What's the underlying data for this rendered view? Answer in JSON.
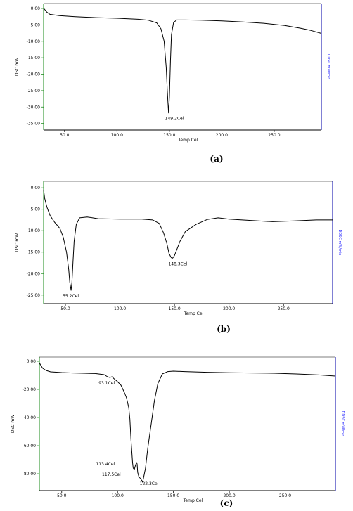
{
  "chart_data": [
    {
      "type": "line",
      "panel_label": "(a)",
      "ylabel": "DSC mW",
      "ylabel_right": "DDSC mW/min",
      "xlabel": "Temp Cel",
      "xlim": [
        30,
        295
      ],
      "ylim": [
        -37,
        1.5
      ],
      "xticks": [
        50,
        100,
        150,
        200,
        250
      ],
      "xtick_labels": [
        "50.0",
        "100.0",
        "150.0",
        "200.0",
        "250.0"
      ],
      "yticks": [
        0,
        -5,
        -10,
        -15,
        -20,
        -25,
        -30,
        -35
      ],
      "ytick_labels": [
        "0.00",
        "-5.00",
        "-10.00",
        "-15.00",
        "-20.00",
        "-25.00",
        "-30.00",
        "-35.00"
      ],
      "annotations": [
        {
          "text": "149.2Cel",
          "x": 149.2,
          "y": -31.8
        }
      ],
      "series": [
        {
          "x": [
            30,
            31,
            33,
            36,
            45,
            60,
            80,
            100,
            120,
            130,
            138,
            142,
            145,
            147,
            148,
            149.2,
            150,
            151,
            152,
            154,
            157,
            165,
            180,
            200,
            220,
            240,
            260,
            275,
            285,
            295
          ],
          "y": [
            0.0,
            -0.3,
            -1.1,
            -1.8,
            -2.2,
            -2.5,
            -2.8,
            -3.0,
            -3.3,
            -3.6,
            -4.4,
            -6.2,
            -10.0,
            -18.0,
            -25.0,
            -31.8,
            -27.0,
            -16.0,
            -8.0,
            -4.3,
            -3.5,
            -3.5,
            -3.6,
            -3.8,
            -4.1,
            -4.5,
            -5.2,
            -6.0,
            -6.7,
            -7.6
          ]
        }
      ]
    },
    {
      "type": "line",
      "panel_label": "(b)",
      "ylabel": "DSC mW",
      "ylabel_right": "DDSC mW/min",
      "xlabel": "Temp Cel",
      "xlim": [
        30,
        295
      ],
      "ylim": [
        -27,
        1.5
      ],
      "xticks": [
        50,
        100,
        150,
        200,
        250
      ],
      "xtick_labels": [
        "50.0",
        "100.0",
        "150.0",
        "200.0",
        "250.0"
      ],
      "yticks": [
        0,
        -5,
        -10,
        -15,
        -20,
        -25
      ],
      "ytick_labels": [
        "0.00",
        "-5.00",
        "-10.00",
        "-15.00",
        "-20.00",
        "-25.00"
      ],
      "annotations": [
        {
          "text": "55.2Cel",
          "x": 55.2,
          "y": -23.9
        },
        {
          "text": "148.3Cel",
          "x": 148.3,
          "y": -16.4
        }
      ],
      "series": [
        {
          "x": [
            30,
            31,
            33,
            36,
            40,
            45,
            48,
            51,
            53,
            54,
            55.2,
            56,
            57,
            58,
            60,
            63,
            70,
            80,
            100,
            120,
            130,
            136,
            140,
            143,
            145,
            147,
            148.3,
            150,
            152,
            155,
            160,
            170,
            180,
            190,
            200,
            220,
            240,
            260,
            280,
            295
          ],
          "y": [
            -0.5,
            -2.5,
            -4.5,
            -6.5,
            -8.0,
            -9.5,
            -11.5,
            -15.0,
            -19.0,
            -22.0,
            -23.9,
            -22.0,
            -17.0,
            -12.5,
            -8.5,
            -7.0,
            -6.8,
            -7.2,
            -7.3,
            -7.3,
            -7.5,
            -8.3,
            -10.5,
            -13.0,
            -15.3,
            -16.3,
            -16.4,
            -15.8,
            -14.5,
            -12.5,
            -10.2,
            -8.5,
            -7.4,
            -7.0,
            -7.3,
            -7.6,
            -7.9,
            -7.7,
            -7.5,
            -7.5
          ]
        }
      ]
    },
    {
      "type": "line",
      "panel_label": "(c)",
      "ylabel": "DSC mW",
      "ylabel_right": "DDSC mW/min",
      "xlabel": "Temp Cel",
      "xlim": [
        30,
        295
      ],
      "ylim": [
        -92,
        3
      ],
      "xticks": [
        50,
        100,
        150,
        200,
        250
      ],
      "xtick_labels": [
        "50.0",
        "100.0",
        "150.0",
        "200.0",
        "250.0"
      ],
      "yticks": [
        0,
        -20,
        -40,
        -60,
        -80
      ],
      "ytick_labels": [
        "0.00",
        "-20.00",
        "-40.00",
        "-60.00",
        "-80.00"
      ],
      "annotations": [
        {
          "text": "93.1Cel",
          "x": 93.1,
          "y": -11.5
        },
        {
          "text": "113.4Cel",
          "x": 113.4,
          "y": -75
        },
        {
          "text": "117.5Cel",
          "x": 117.5,
          "y": -80
        },
        {
          "text": "122.3Cel",
          "x": 122.3,
          "y": -86
        }
      ],
      "series": [
        {
          "x": [
            30,
            31,
            33,
            36,
            40,
            50,
            60,
            70,
            80,
            88,
            91,
            93.1,
            95,
            97,
            100,
            103,
            106,
            108,
            110,
            111,
            112,
            113.4,
            114,
            115,
            116,
            117,
            117.5,
            118,
            119,
            120,
            121,
            122.3,
            123,
            125,
            127,
            130,
            133,
            136,
            140,
            145,
            150,
            160,
            180,
            200,
            220,
            240,
            260,
            280,
            295
          ],
          "y": [
            -1.0,
            -2.5,
            -5.0,
            -6.5,
            -7.5,
            -8.0,
            -8.3,
            -8.5,
            -8.7,
            -9.5,
            -11.0,
            -11.5,
            -11.0,
            -12.5,
            -14.5,
            -17.0,
            -22.0,
            -26.0,
            -33.0,
            -41.0,
            -56.0,
            -72.0,
            -76.0,
            -77.0,
            -74.0,
            -72.0,
            -73.0,
            -79.0,
            -82.0,
            -83.0,
            -84.0,
            -86.0,
            -84.0,
            -76.0,
            -62.0,
            -45.0,
            -28.0,
            -16.0,
            -9.0,
            -7.3,
            -7.0,
            -7.3,
            -7.8,
            -8.1,
            -8.3,
            -8.5,
            -9.0,
            -9.7,
            -10.5
          ]
        }
      ]
    }
  ]
}
